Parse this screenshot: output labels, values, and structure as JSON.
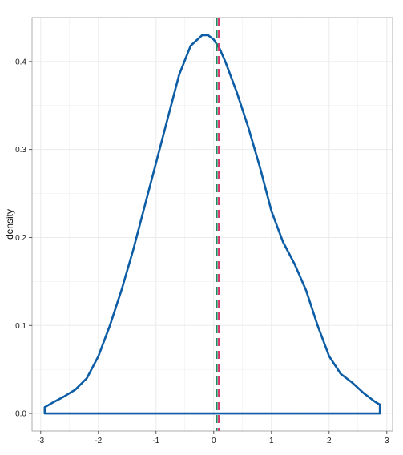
{
  "chart_data": {
    "type": "line",
    "title": "",
    "xlabel": "",
    "ylabel": "density",
    "xlim": [
      -3.15,
      3.1
    ],
    "ylim": [
      -0.02,
      0.45
    ],
    "x_ticks": [
      -3,
      -2,
      -1,
      0,
      1,
      2,
      3
    ],
    "x_tick_labels": [
      "-3",
      "-2",
      "-1",
      "0",
      "1",
      "2",
      "3"
    ],
    "y_ticks": [
      0.0,
      0.1,
      0.2,
      0.3,
      0.4
    ],
    "y_tick_labels": [
      "0.0",
      "0.1",
      "0.2",
      "0.3",
      "0.4"
    ],
    "grid": true,
    "legend": "none",
    "colors": {
      "density": "#0C5DA5",
      "mean_line": "#D6336C",
      "median_line": "#1B8A5A",
      "grid": "#EBEBEB",
      "panel_border": "#999999"
    },
    "series": [
      {
        "x": [
          -2.93,
          -2.8,
          -2.6,
          -2.4,
          -2.2,
          -2.0,
          -1.8,
          -1.6,
          -1.4,
          -1.2,
          -1.0,
          -0.8,
          -0.6,
          -0.4,
          -0.2,
          -0.1,
          0.0,
          0.1,
          0.2,
          0.4,
          0.6,
          0.8,
          1.0,
          1.2,
          1.4,
          1.6,
          1.8,
          2.0,
          2.2,
          2.4,
          2.6,
          2.8,
          2.88
        ],
        "y": [
          0.007,
          0.012,
          0.019,
          0.027,
          0.04,
          0.065,
          0.1,
          0.14,
          0.185,
          0.235,
          0.285,
          0.335,
          0.385,
          0.418,
          0.43,
          0.43,
          0.425,
          0.415,
          0.4,
          0.365,
          0.325,
          0.28,
          0.23,
          0.195,
          0.17,
          0.14,
          0.1,
          0.065,
          0.045,
          0.035,
          0.023,
          0.013,
          0.01
        ]
      }
    ],
    "vlines": [
      {
        "x": 0.05,
        "style": "dashed"
      },
      {
        "x": 0.09,
        "style": "dashed"
      }
    ]
  }
}
